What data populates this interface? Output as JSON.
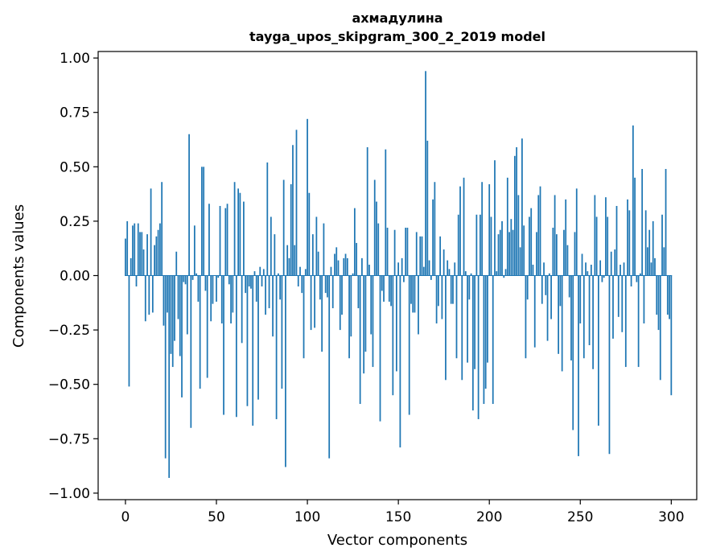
{
  "chart_data": {
    "type": "bar",
    "title": "ахмадулина",
    "subtitle": "tayga_upos_skipgram_300_2_2019 model",
    "xlabel": "Vector components",
    "ylabel": "Components values",
    "xlim": [
      -15,
      314
    ],
    "ylim": [
      -1.03,
      1.03
    ],
    "xticks": [
      0,
      50,
      100,
      150,
      200,
      250,
      300
    ],
    "yticks": [
      -1.0,
      -0.75,
      -0.5,
      -0.25,
      0.0,
      0.25,
      0.5,
      0.75,
      1.0
    ],
    "xtick_labels": [
      "0",
      "50",
      "100",
      "150",
      "200",
      "250",
      "300"
    ],
    "ytick_labels": [
      "−1.00",
      "−0.75",
      "−0.50",
      "−0.25",
      "0.00",
      "0.25",
      "0.50",
      "0.75",
      "1.00"
    ],
    "color": "#1f77b4",
    "grid": false,
    "legend": "none",
    "values": [
      0.17,
      0.25,
      -0.51,
      0.08,
      0.23,
      0.24,
      -0.05,
      0.24,
      0.2,
      0.2,
      0.12,
      -0.21,
      0.19,
      -0.18,
      0.4,
      -0.17,
      0.14,
      0.18,
      0.21,
      0.24,
      0.43,
      -0.23,
      -0.84,
      -0.17,
      -0.93,
      -0.36,
      -0.42,
      -0.3,
      0.11,
      -0.2,
      -0.37,
      -0.56,
      -0.03,
      -0.04,
      -0.27,
      0.65,
      -0.7,
      -0.02,
      0.23,
      0.01,
      -0.12,
      -0.52,
      0.5,
      0.5,
      -0.07,
      -0.47,
      0.33,
      -0.21,
      -0.13,
      0.0,
      -0.12,
      -0.01,
      0.32,
      -0.22,
      -0.64,
      0.31,
      0.33,
      -0.04,
      -0.22,
      -0.17,
      0.43,
      -0.65,
      0.4,
      0.38,
      -0.31,
      0.34,
      -0.08,
      -0.6,
      -0.05,
      -0.06,
      -0.69,
      0.02,
      -0.12,
      -0.57,
      0.04,
      -0.05,
      0.03,
      -0.18,
      0.52,
      -0.15,
      0.27,
      -0.28,
      0.19,
      -0.66,
      0.01,
      -0.11,
      -0.52,
      0.44,
      -0.88,
      0.14,
      0.08,
      0.42,
      0.6,
      0.14,
      0.67,
      -0.05,
      0.04,
      -0.08,
      -0.38,
      0.03,
      0.72,
      0.38,
      -0.25,
      0.19,
      -0.24,
      0.27,
      0.11,
      -0.11,
      -0.35,
      0.24,
      -0.08,
      -0.1,
      -0.84,
      0.04,
      -0.15,
      0.1,
      0.13,
      0.07,
      -0.25,
      -0.18,
      0.08,
      0.1,
      0.08,
      -0.38,
      -0.28,
      0.01,
      0.31,
      0.15,
      -0.15,
      -0.59,
      0.08,
      -0.45,
      -0.35,
      0.59,
      0.05,
      -0.27,
      -0.42,
      0.44,
      0.34,
      0.24,
      -0.67,
      -0.07,
      -0.12,
      0.58,
      0.22,
      -0.12,
      -0.14,
      -0.55,
      0.21,
      -0.44,
      0.06,
      -0.79,
      0.08,
      -0.03,
      0.22,
      0.22,
      -0.64,
      -0.13,
      -0.17,
      -0.17,
      0.2,
      -0.27,
      0.18,
      0.18,
      0.04,
      0.94,
      0.62,
      0.07,
      -0.02,
      0.35,
      0.43,
      -0.22,
      -0.14,
      0.18,
      -0.2,
      0.12,
      -0.48,
      0.07,
      0.03,
      -0.13,
      -0.13,
      0.06,
      -0.38,
      0.28,
      0.41,
      -0.48,
      0.45,
      0.02,
      -0.4,
      -0.11,
      0.01,
      -0.62,
      -0.43,
      0.28,
      -0.66,
      0.28,
      0.43,
      -0.59,
      -0.52,
      -0.4,
      0.42,
      0.27,
      -0.59,
      0.53,
      0.02,
      0.19,
      0.21,
      0.25,
      -0.01,
      0.03,
      0.45,
      0.2,
      0.26,
      0.21,
      0.55,
      0.59,
      0.37,
      0.13,
      0.63,
      0.23,
      -0.38,
      -0.11,
      0.27,
      0.31,
      0.05,
      -0.33,
      0.2,
      0.37,
      0.41,
      -0.13,
      0.06,
      -0.09,
      -0.3,
      0.01,
      -0.2,
      0.22,
      0.37,
      0.19,
      -0.36,
      -0.14,
      -0.44,
      0.21,
      0.35,
      0.14,
      -0.1,
      -0.39,
      -0.71,
      0.2,
      0.4,
      -0.83,
      -0.22,
      0.1,
      -0.38,
      0.06,
      0.02,
      -0.32,
      0.05,
      -0.43,
      0.37,
      0.27,
      -0.69,
      0.07,
      -0.03,
      -0.01,
      0.36,
      0.27,
      -0.82,
      0.11,
      -0.29,
      0.12,
      0.32,
      -0.19,
      0.05,
      -0.26,
      0.06,
      -0.42,
      0.35,
      0.3,
      -0.05,
      0.69,
      0.45,
      -0.03,
      -0.42,
      0.01,
      0.49,
      -0.22,
      0.3,
      0.13,
      0.21,
      0.06,
      0.25,
      0.08,
      -0.18,
      -0.25,
      -0.48,
      0.28,
      0.13,
      0.49,
      -0.18,
      -0.2,
      -0.55
    ]
  }
}
